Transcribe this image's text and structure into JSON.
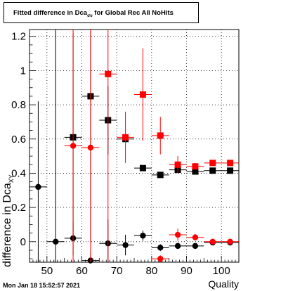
{
  "chart_data": {
    "type": "scatter",
    "title_main": "Fitted difference in Dca",
    "title_sub": "συ",
    "title_rest": " for Global Rec All NoHits",
    "ylabel_main": "difference in Dca",
    "ylabel_sub": "XY",
    "xlabel": "Quality",
    "footer": "Mon Jan 18 15:52:57 2021",
    "xlim": [
      45,
      105
    ],
    "ylim": [
      -0.12,
      1.24
    ],
    "xticks": [
      50,
      60,
      70,
      80,
      90,
      100
    ],
    "yticks": [
      0,
      0.2,
      0.4,
      0.6,
      0.8,
      1,
      1.2
    ],
    "ytick_labels": [
      "0",
      "0.2",
      "0.4",
      "0.6",
      "0.8",
      "1",
      "1.2"
    ],
    "grid": true,
    "xerr": 2.5,
    "series": [
      {
        "marker": "square",
        "color": "#000000",
        "points": [
          {
            "x": 57.5,
            "y": 0.61,
            "yerr_lo": 0.61,
            "yerr_hi": 0.61
          },
          {
            "x": 62.5,
            "y": 0.85,
            "yerr_lo": 0.85,
            "yerr_hi": 0.85
          },
          {
            "x": 67.5,
            "y": 0.71,
            "yerr_lo": 0.2,
            "yerr_hi": 0.2
          },
          {
            "x": 72.5,
            "y": 0.6,
            "yerr_lo": 0.015,
            "yerr_hi": 0.015
          },
          {
            "x": 77.5,
            "y": 0.43,
            "yerr_lo": 0.015,
            "yerr_hi": 0.015
          },
          {
            "x": 82.5,
            "y": 0.39,
            "yerr_lo": 0.015,
            "yerr_hi": 0.015
          },
          {
            "x": 87.5,
            "y": 0.42,
            "yerr_lo": 0.01,
            "yerr_hi": 0.01
          },
          {
            "x": 92.5,
            "y": 0.41,
            "yerr_lo": 0.01,
            "yerr_hi": 0.01
          },
          {
            "x": 97.5,
            "y": 0.415,
            "yerr_lo": 0.005,
            "yerr_hi": 0.005
          },
          {
            "x": 102.5,
            "y": 0.415,
            "yerr_lo": 0.005,
            "yerr_hi": 0.005
          }
        ]
      },
      {
        "marker": "circle",
        "color": "#000000",
        "points": [
          {
            "x": 47.5,
            "y": 0.32,
            "yerr_lo": 0.5,
            "yerr_hi": 0.5
          },
          {
            "x": 52.5,
            "y": 0.0,
            "yerr_lo": 1.3,
            "yerr_hi": 1.3
          },
          {
            "x": 57.5,
            "y": 0.02,
            "yerr_lo": 0.1,
            "yerr_hi": 0.1
          },
          {
            "x": 62.5,
            "y": -0.11,
            "yerr_lo": 0.05,
            "yerr_hi": 0.05
          },
          {
            "x": 67.5,
            "y": -0.01,
            "yerr_lo": 0.14,
            "yerr_hi": 0.14
          },
          {
            "x": 72.5,
            "y": -0.02,
            "yerr_lo": 0.06,
            "yerr_hi": 0.06
          },
          {
            "x": 77.5,
            "y": 0.035,
            "yerr_lo": 0.03,
            "yerr_hi": 0.03
          },
          {
            "x": 82.5,
            "y": -0.035,
            "yerr_lo": 0.02,
            "yerr_hi": 0.02
          },
          {
            "x": 87.5,
            "y": -0.025,
            "yerr_lo": 0.01,
            "yerr_hi": 0.01
          },
          {
            "x": 92.5,
            "y": -0.025,
            "yerr_lo": 0.005,
            "yerr_hi": 0.005
          },
          {
            "x": 97.5,
            "y": -0.005,
            "yerr_lo": 0.005,
            "yerr_hi": 0.005
          },
          {
            "x": 102.5,
            "y": -0.005,
            "yerr_lo": 0.005,
            "yerr_hi": 0.005
          }
        ]
      },
      {
        "marker": "square",
        "color": "#ff0000",
        "points": [
          {
            "x": 67.5,
            "y": 0.98,
            "yerr_lo": 1.2,
            "yerr_hi": 1.2
          },
          {
            "x": 72.5,
            "y": 0.61,
            "yerr_lo": 0.15,
            "yerr_hi": 0.15
          },
          {
            "x": 77.5,
            "y": 0.86,
            "yerr_lo": 0.27,
            "yerr_hi": 0.27
          },
          {
            "x": 82.5,
            "y": 0.62,
            "yerr_lo": 0.11,
            "yerr_hi": 0.11
          },
          {
            "x": 87.5,
            "y": 0.45,
            "yerr_lo": 0.05,
            "yerr_hi": 0.05
          },
          {
            "x": 92.5,
            "y": 0.44,
            "yerr_lo": 0.02,
            "yerr_hi": 0.02
          },
          {
            "x": 97.5,
            "y": 0.46,
            "yerr_lo": 0.005,
            "yerr_hi": 0.005
          },
          {
            "x": 102.5,
            "y": 0.46,
            "yerr_lo": 0.005,
            "yerr_hi": 0.005
          }
        ]
      },
      {
        "marker": "circle",
        "color": "#ff0000",
        "points": [
          {
            "x": 57.5,
            "y": 0.56,
            "yerr_lo": 1.0,
            "yerr_hi": 1.0
          },
          {
            "x": 62.5,
            "y": 0.55,
            "yerr_lo": 1.0,
            "yerr_hi": 1.0
          },
          {
            "x": 82.5,
            "y": -0.1,
            "yerr_lo": 0.02,
            "yerr_hi": 0.02
          },
          {
            "x": 87.5,
            "y": 0.04,
            "yerr_lo": 0.035,
            "yerr_hi": 0.035
          },
          {
            "x": 92.5,
            "y": 0.025,
            "yerr_lo": 0.02,
            "yerr_hi": 0.02
          },
          {
            "x": 97.5,
            "y": 0.0,
            "yerr_lo": 0.01,
            "yerr_hi": 0.01
          },
          {
            "x": 102.5,
            "y": 0.0,
            "yerr_lo": 0.005,
            "yerr_hi": 0.005
          }
        ]
      }
    ]
  }
}
